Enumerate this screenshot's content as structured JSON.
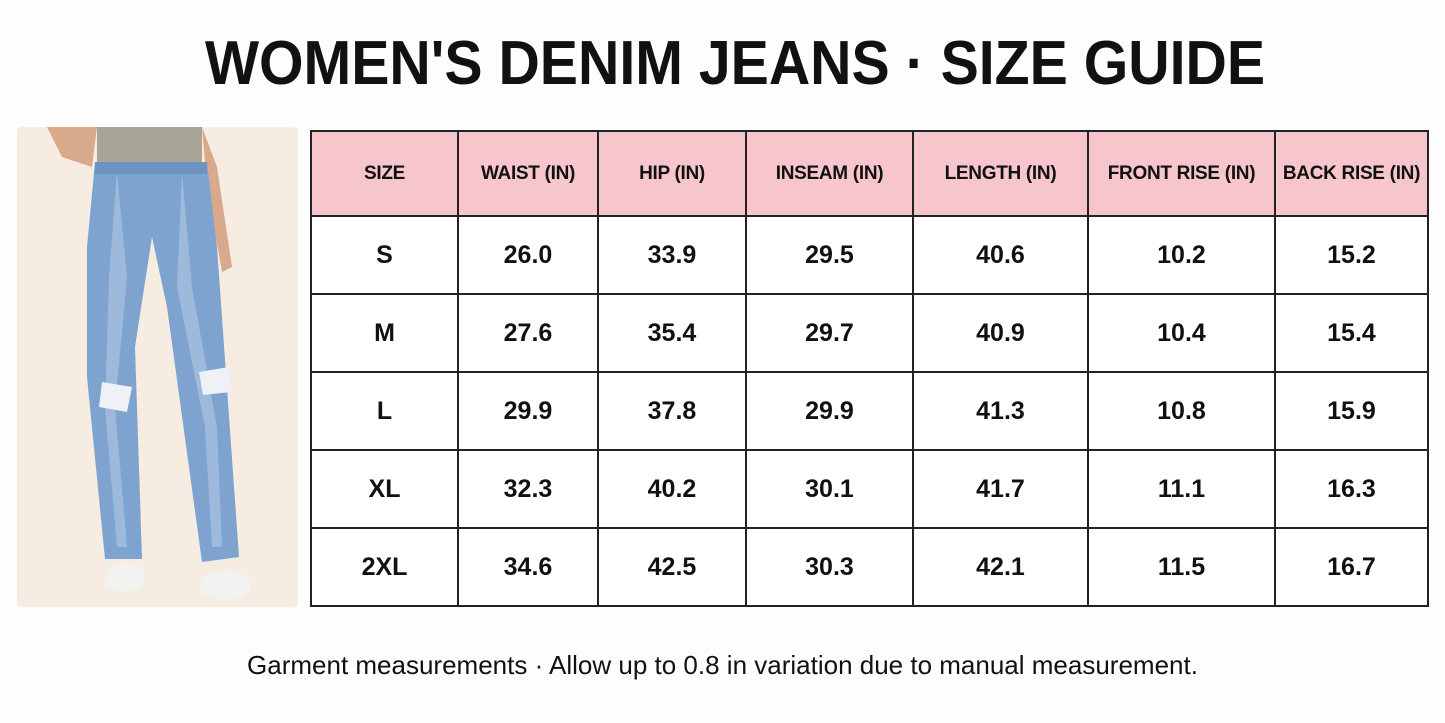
{
  "title": "WOMEN'S DENIM JEANS · SIZE GUIDE",
  "table": {
    "headers": [
      "SIZE",
      "WAIST (IN)",
      "HIP (IN)",
      "INSEAM (IN)",
      "LENGTH (IN)",
      "FRONT RISE (IN)",
      "BACK RISE (IN)"
    ],
    "rows": [
      [
        "S",
        "26.0",
        "33.9",
        "29.5",
        "40.6",
        "10.2",
        "15.2"
      ],
      [
        "M",
        "27.6",
        "35.4",
        "29.7",
        "40.9",
        "10.4",
        "15.4"
      ],
      [
        "L",
        "29.9",
        "37.8",
        "29.9",
        "41.3",
        "10.8",
        "15.9"
      ],
      [
        "XL",
        "32.3",
        "40.2",
        "30.1",
        "41.7",
        "11.1",
        "16.3"
      ],
      [
        "2XL",
        "34.6",
        "42.5",
        "30.3",
        "42.1",
        "11.5",
        "16.7"
      ]
    ]
  },
  "footer": "Garment measurements · Allow up to 0.8 in variation due to manual measurement."
}
